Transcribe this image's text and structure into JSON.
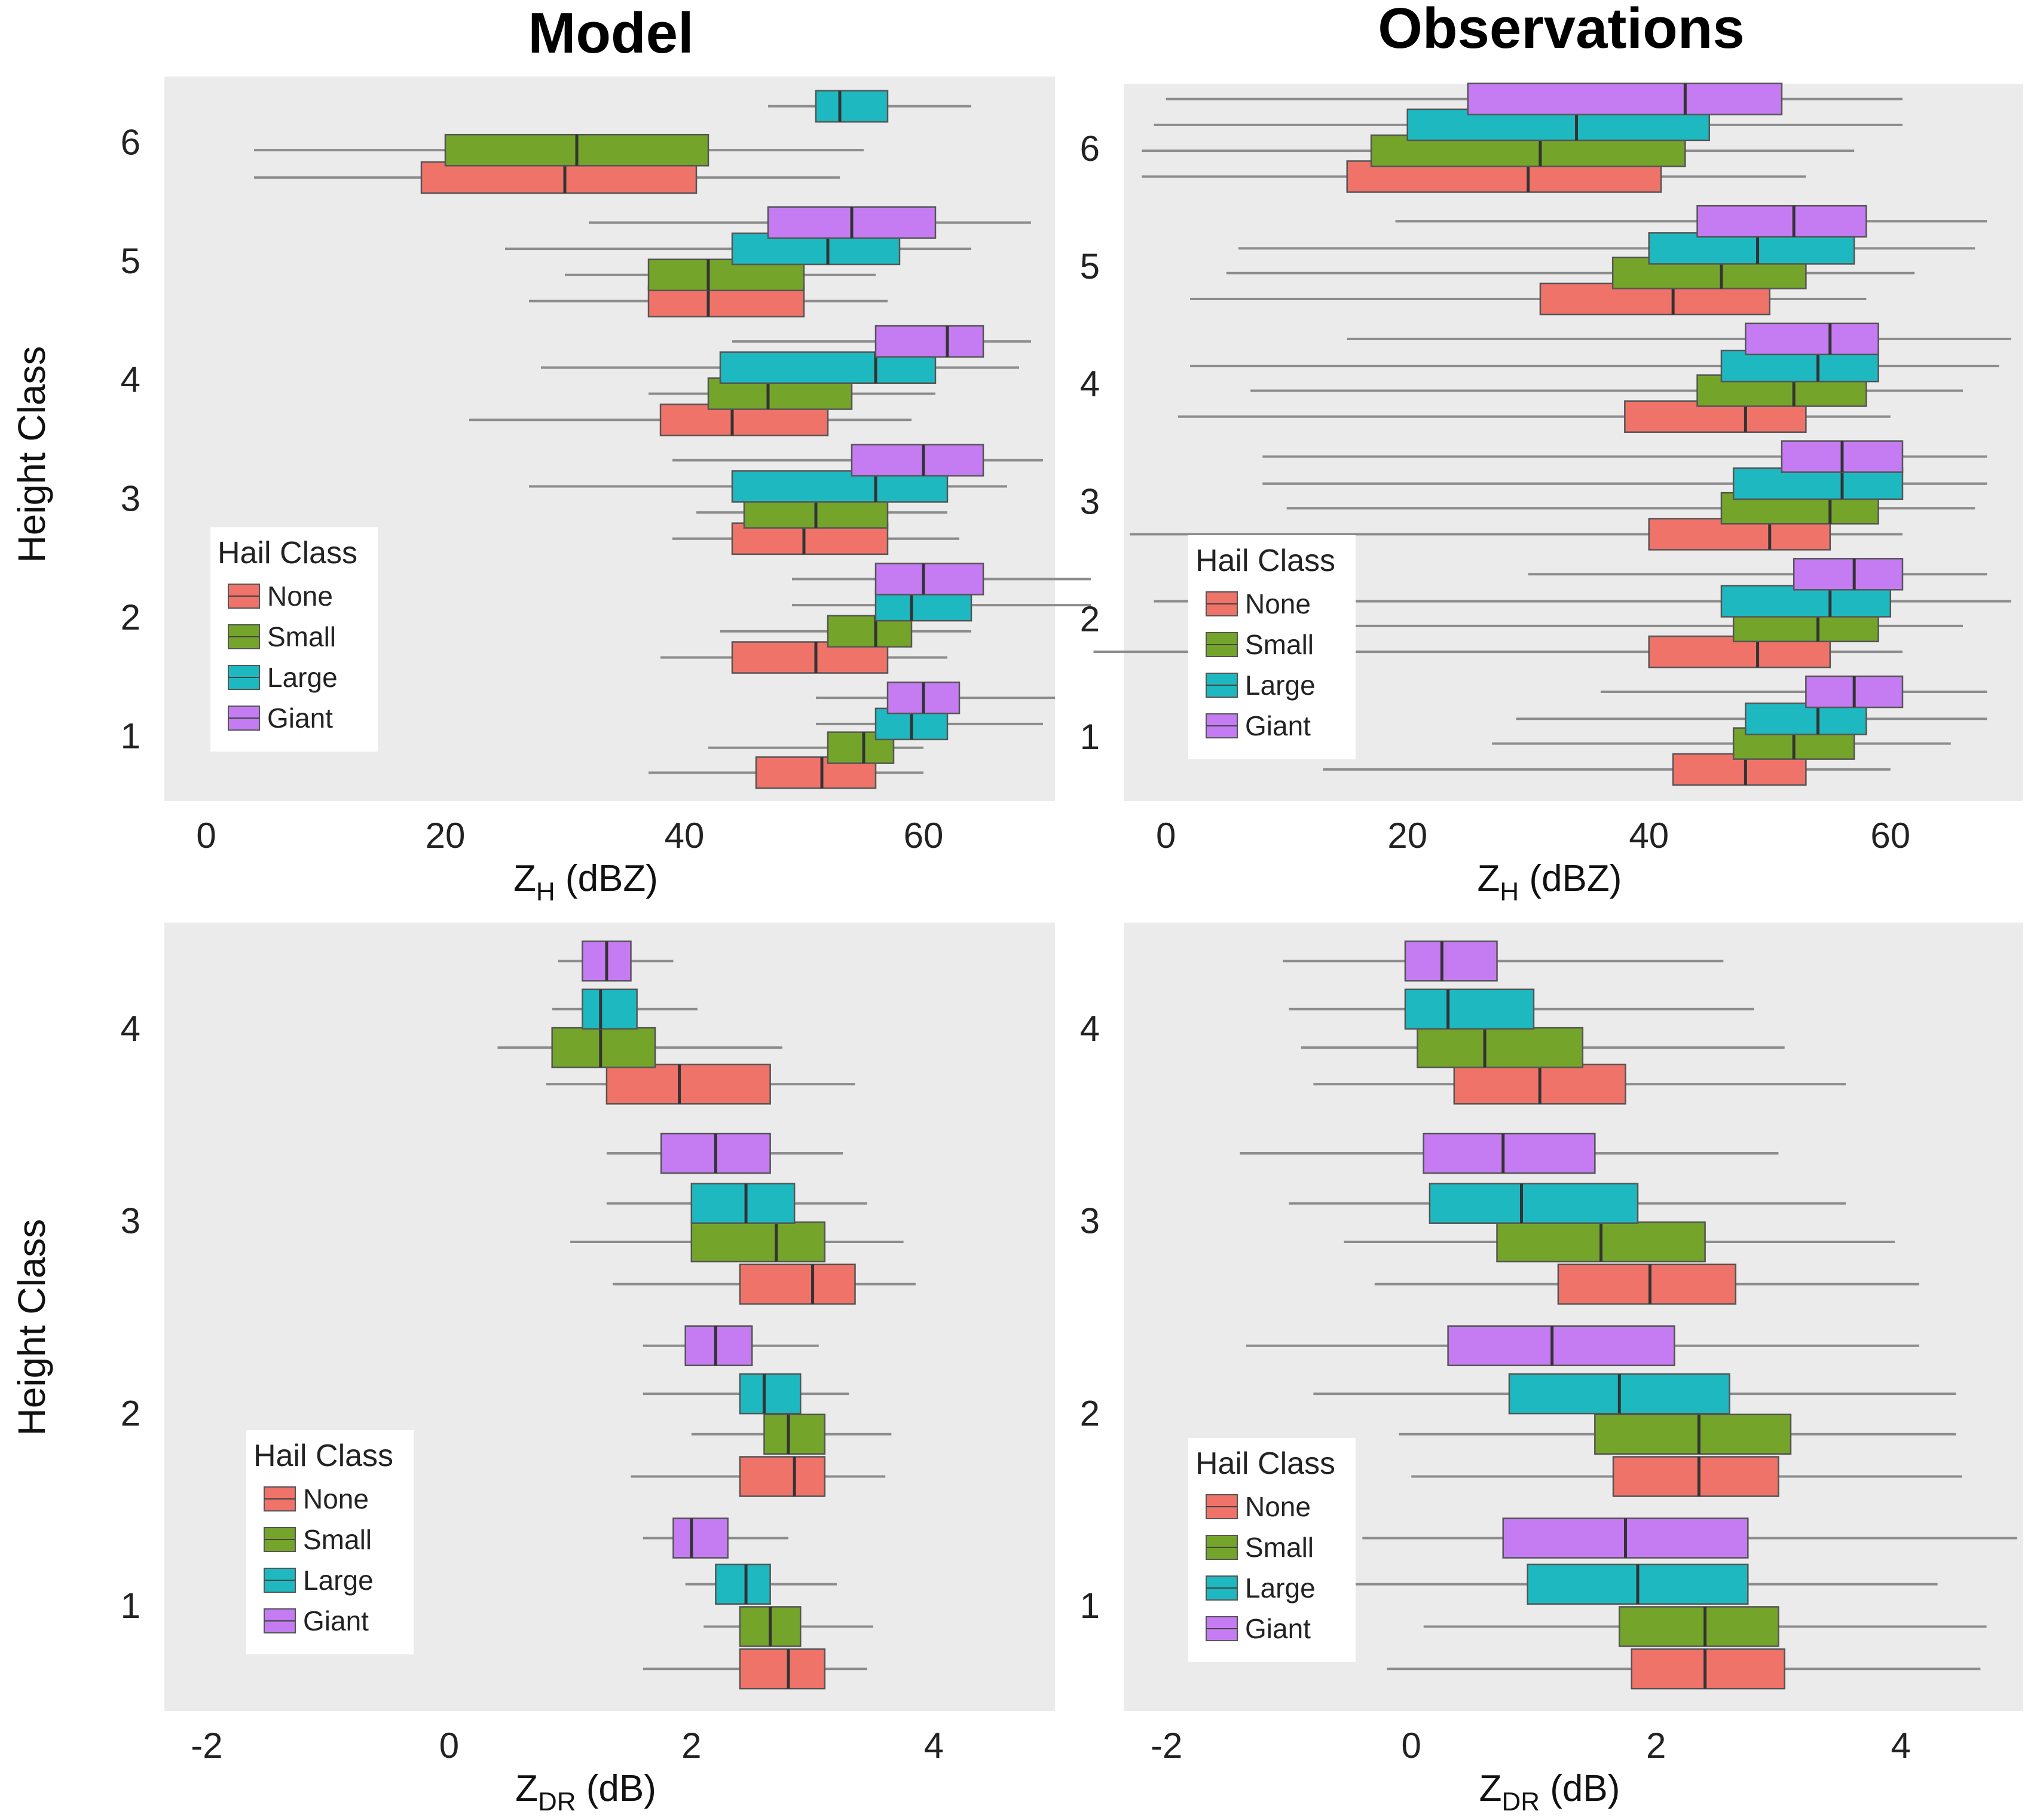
{
  "figure": {
    "left_title": "Model",
    "right_title": "Observations",
    "y_axis_label": "Height Class"
  },
  "legend": {
    "title": "Hail Class",
    "items": [
      "None",
      "Small",
      "Large",
      "Giant"
    ]
  },
  "colors": {
    "None": "#F0736A",
    "Small": "#74A52A",
    "Large": "#1EB9C0",
    "Giant": "#C57CF2",
    "panel_bg": "#EBEBEB",
    "whisker": "#8C8C8C",
    "outline": "#555555"
  },
  "chart_data": [
    {
      "id": "model_zh",
      "type": "boxplot",
      "orientation": "horizontal",
      "title": "Model",
      "xlabel_main": "Z",
      "xlabel_sub": "H",
      "xlabel_rest": " (dBZ)",
      "xlim": [
        -3.5,
        71
      ],
      "xticks": [
        0,
        20,
        40,
        60
      ],
      "ylabel": "Height Class",
      "ylim": [
        0.45,
        6.55
      ],
      "yticks": [
        1,
        2,
        3,
        4,
        5,
        6
      ],
      "series": [
        {
          "name": "None",
          "y": [
            0.69,
            1.66,
            2.66,
            3.66,
            4.66,
            5.7
          ],
          "stats": [
            [
              37,
              46,
              51.5,
              56,
              60
            ],
            [
              38,
              44,
              51,
              57,
              62
            ],
            [
              39,
              44,
              50,
              57,
              63
            ],
            [
              22,
              38,
              44,
              52,
              59
            ],
            [
              27,
              37,
              42,
              50,
              57
            ],
            [
              4,
              18,
              30,
              41,
              53
            ]
          ]
        },
        {
          "name": "Small",
          "y": [
            0.9,
            1.88,
            2.88,
            3.88,
            4.88,
            5.93
          ],
          "stats": [
            [
              42,
              52,
              55,
              57.5,
              60
            ],
            [
              43,
              52,
              56,
              59,
              64
            ],
            [
              41,
              45,
              51,
              57,
              62
            ],
            [
              37,
              42,
              47,
              54,
              61
            ],
            [
              30,
              37,
              42,
              50,
              56
            ],
            [
              4,
              20,
              31,
              42,
              55
            ]
          ]
        },
        {
          "name": "Large",
          "y": [
            1.1,
            2.1,
            3.1,
            4.1,
            5.1,
            6.3
          ],
          "stats": [
            [
              51,
              56,
              59,
              62,
              70
            ],
            [
              49,
              56,
              59,
              64,
              74
            ],
            [
              27,
              44,
              56,
              62,
              67
            ],
            [
              28,
              43,
              56,
              61,
              68
            ],
            [
              25,
              44,
              52,
              58,
              64
            ],
            [
              47,
              51,
              53,
              57,
              64
            ]
          ]
        },
        {
          "name": "Giant",
          "y": [
            1.32,
            2.32,
            3.32,
            4.32,
            5.32
          ],
          "stats": [
            [
              51,
              57,
              60,
              63,
              71
            ],
            [
              49,
              56,
              60,
              65,
              74
            ],
            [
              39,
              54,
              60,
              65,
              70
            ],
            [
              44,
              56,
              62,
              65,
              69
            ],
            [
              32,
              47,
              54,
              61,
              69
            ]
          ]
        }
      ]
    },
    {
      "id": "obs_zh",
      "type": "boxplot",
      "orientation": "horizontal",
      "title": "Observations",
      "xlabel_main": "Z",
      "xlabel_sub": "H",
      "xlabel_rest": " (dBZ)",
      "xlim": [
        -3.5,
        71
      ],
      "xticks": [
        0,
        20,
        40,
        60
      ],
      "ylabel": "Height Class",
      "ylim": [
        0.45,
        6.55
      ],
      "yticks": [
        1,
        2,
        3,
        4,
        5,
        6
      ],
      "series": [
        {
          "name": "None",
          "y": [
            0.72,
            1.72,
            2.72,
            3.72,
            4.72,
            5.76
          ],
          "stats": [
            [
              13,
              42,
              48,
              53,
              60
            ],
            [
              -6,
              40,
              49,
              55,
              61
            ],
            [
              -3,
              40,
              50,
              55,
              61
            ],
            [
              1,
              38,
              48,
              53,
              60
            ],
            [
              2,
              31,
              42,
              50,
              58
            ],
            [
              -2,
              15,
              30,
              41,
              53
            ]
          ]
        },
        {
          "name": "Small",
          "y": [
            0.94,
            1.94,
            2.94,
            3.94,
            4.94,
            5.98
          ],
          "stats": [
            [
              27,
              47,
              52,
              57,
              65
            ],
            [
              15,
              47,
              54,
              59,
              66
            ],
            [
              10,
              46,
              55,
              59,
              67
            ],
            [
              7,
              44,
              52,
              58,
              66
            ],
            [
              5,
              37,
              46,
              53,
              62
            ],
            [
              -2,
              17,
              31,
              43,
              57
            ]
          ]
        },
        {
          "name": "Large",
          "y": [
            1.15,
            2.15,
            3.15,
            4.15,
            5.15,
            6.2
          ],
          "stats": [
            [
              29,
              48,
              54,
              58,
              68
            ],
            [
              -1,
              46,
              55,
              60,
              70
            ],
            [
              8,
              47,
              56,
              61,
              68
            ],
            [
              2,
              46,
              54,
              59,
              69
            ],
            [
              6,
              40,
              49,
              57,
              67
            ],
            [
              -1,
              20,
              34,
              45,
              61
            ]
          ]
        },
        {
          "name": "Giant",
          "y": [
            1.38,
            2.38,
            3.38,
            4.38,
            5.38,
            6.42
          ],
          "stats": [
            [
              36,
              53,
              57,
              61,
              68
            ],
            [
              30,
              52,
              57,
              61,
              68
            ],
            [
              8,
              51,
              56,
              61,
              68
            ],
            [
              15,
              48,
              55,
              59,
              70
            ],
            [
              19,
              44,
              52,
              58,
              68
            ],
            [
              0,
              25,
              43,
              51,
              61
            ]
          ]
        }
      ]
    },
    {
      "id": "model_zdr",
      "type": "boxplot",
      "orientation": "horizontal",
      "title": "",
      "xlabel_main": "Z",
      "xlabel_sub": "DR",
      "xlabel_rest": " (dB)",
      "xlim": [
        -2.35,
        5.0
      ],
      "xticks": [
        -2,
        0,
        2,
        4
      ],
      "ylabel": "Height Class",
      "ylim": [
        0.45,
        4.55
      ],
      "yticks": [
        1,
        2,
        3,
        4
      ],
      "series": [
        {
          "name": "None",
          "y": [
            0.67,
            1.67,
            2.67,
            3.71
          ],
          "stats": [
            [
              1.6,
              2.4,
              2.8,
              3.1,
              3.45
            ],
            [
              1.5,
              2.4,
              2.85,
              3.1,
              3.6
            ],
            [
              1.35,
              2.4,
              3.0,
              3.35,
              3.85
            ],
            [
              0.8,
              1.3,
              1.9,
              2.65,
              3.35
            ]
          ]
        },
        {
          "name": "Small",
          "y": [
            0.89,
            1.89,
            2.89,
            3.9
          ],
          "stats": [
            [
              2.1,
              2.4,
              2.65,
              2.9,
              3.5
            ],
            [
              2.0,
              2.6,
              2.8,
              3.1,
              3.65
            ],
            [
              1.0,
              2.0,
              2.7,
              3.1,
              3.75
            ],
            [
              0.4,
              0.85,
              1.25,
              1.7,
              2.75
            ]
          ]
        },
        {
          "name": "Large",
          "y": [
            1.11,
            2.1,
            3.09,
            4.1
          ],
          "stats": [
            [
              1.95,
              2.2,
              2.45,
              2.65,
              3.2
            ],
            [
              1.6,
              2.4,
              2.6,
              2.9,
              3.3
            ],
            [
              1.3,
              2.0,
              2.45,
              2.85,
              3.45
            ],
            [
              0.85,
              1.1,
              1.25,
              1.55,
              2.05
            ]
          ]
        },
        {
          "name": "Giant",
          "y": [
            1.35,
            2.35,
            3.35,
            4.35
          ],
          "stats": [
            [
              1.6,
              1.85,
              2.0,
              2.3,
              2.8
            ],
            [
              1.6,
              1.95,
              2.2,
              2.5,
              3.05
            ],
            [
              1.3,
              1.75,
              2.2,
              2.65,
              3.25
            ],
            [
              0.9,
              1.1,
              1.3,
              1.5,
              1.85
            ]
          ]
        }
      ]
    },
    {
      "id": "obs_zdr",
      "type": "boxplot",
      "orientation": "horizontal",
      "title": "",
      "xlabel_main": "Z",
      "xlabel_sub": "DR",
      "xlabel_rest": " (dB)",
      "xlim": [
        -2.35,
        5.0
      ],
      "xticks": [
        -2,
        0,
        2,
        4
      ],
      "ylabel": "Height Class",
      "ylim": [
        0.45,
        4.55
      ],
      "yticks": [
        1,
        2,
        3,
        4
      ],
      "series": [
        {
          "name": "None",
          "y": [
            0.67,
            1.67,
            2.67,
            3.71
          ],
          "stats": [
            [
              -0.2,
              1.8,
              2.4,
              3.05,
              4.65
            ],
            [
              0.0,
              1.65,
              2.35,
              3.0,
              4.5
            ],
            [
              -0.3,
              1.2,
              1.95,
              2.65,
              4.15
            ],
            [
              -0.8,
              0.35,
              1.05,
              1.75,
              3.55
            ]
          ]
        },
        {
          "name": "Small",
          "y": [
            0.89,
            1.89,
            2.89,
            3.9
          ],
          "stats": [
            [
              0.1,
              1.7,
              2.4,
              3.0,
              4.7
            ],
            [
              -0.1,
              1.5,
              2.35,
              3.1,
              4.45
            ],
            [
              -0.55,
              0.7,
              1.55,
              2.4,
              3.95
            ],
            [
              -0.9,
              0.05,
              0.6,
              1.4,
              3.05
            ]
          ]
        },
        {
          "name": "Large",
          "y": [
            1.11,
            2.1,
            3.09,
            4.1
          ],
          "stats": [
            [
              -1.0,
              0.95,
              1.85,
              2.75,
              4.3
            ],
            [
              -0.8,
              0.8,
              1.7,
              2.6,
              4.45
            ],
            [
              -1.0,
              0.15,
              0.9,
              1.85,
              3.55
            ],
            [
              -1.0,
              -0.05,
              0.3,
              1.0,
              2.8
            ]
          ]
        },
        {
          "name": "Giant",
          "y": [
            1.35,
            2.35,
            3.35,
            4.35
          ],
          "stats": [
            [
              -0.4,
              0.75,
              1.75,
              2.75,
              4.95
            ],
            [
              -1.35,
              0.3,
              1.15,
              2.15,
              4.15
            ],
            [
              -1.4,
              0.1,
              0.75,
              1.5,
              3.0
            ],
            [
              -1.05,
              -0.05,
              0.25,
              0.7,
              2.55
            ]
          ]
        }
      ]
    }
  ]
}
